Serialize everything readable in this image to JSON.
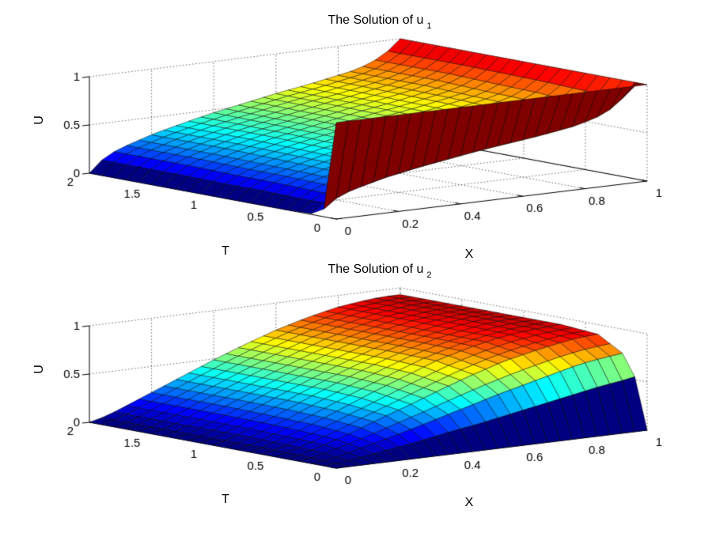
{
  "figure": {
    "background": "#FFFFFF",
    "text_color": "#000000",
    "grid_color": "#666666",
    "axis_color": "#000000"
  },
  "chart_data": [
    {
      "type": "surface",
      "title_text": "The Solution of u",
      "title_subscript": "1",
      "xlabel": "X",
      "ylabel": "T",
      "zlabel": "U",
      "colormap": "jet",
      "grid_on": true,
      "x_range": [
        0,
        1
      ],
      "t_range": [
        0,
        2
      ],
      "u_range": [
        0,
        1
      ],
      "x_ticks": [
        0,
        0.2,
        0.4,
        0.6,
        0.8,
        1
      ],
      "x_tick_labels": [
        "0",
        "0.2",
        "0.4",
        "0.6",
        "0.8",
        "1"
      ],
      "t_ticks": [
        0,
        0.5,
        1,
        1.5,
        2
      ],
      "t_tick_labels": [
        "0",
        "0.5",
        "1",
        "1.5",
        "2"
      ],
      "u_ticks": [
        0,
        0.5,
        1
      ],
      "u_tick_labels": [
        "0",
        "0.5",
        "1"
      ],
      "x": [
        0,
        0.05,
        0.1,
        0.2,
        0.3,
        0.4,
        0.5,
        0.6,
        0.7,
        0.8,
        0.85,
        0.9,
        0.95,
        1
      ],
      "t": [
        0,
        0.1,
        0.2,
        0.4,
        0.7,
        1,
        1.4,
        2
      ],
      "u": [
        [
          1.0,
          1.0,
          1.0,
          1.0,
          1.0,
          1.0,
          1.0,
          1.0,
          1.0,
          1.0,
          1.0,
          1.0,
          1.0,
          1.0
        ],
        [
          0.08,
          0.2,
          0.25,
          0.33,
          0.39,
          0.44,
          0.49,
          0.53,
          0.57,
          0.62,
          0.66,
          0.71,
          0.81,
          1.0
        ],
        [
          0.01,
          0.13,
          0.19,
          0.28,
          0.35,
          0.41,
          0.46,
          0.51,
          0.56,
          0.61,
          0.65,
          0.7,
          0.8,
          1.0
        ],
        [
          0.0,
          0.13,
          0.2,
          0.29,
          0.36,
          0.42,
          0.48,
          0.53,
          0.58,
          0.63,
          0.67,
          0.72,
          0.82,
          1.0
        ],
        [
          0.0,
          0.14,
          0.21,
          0.3,
          0.38,
          0.44,
          0.5,
          0.55,
          0.6,
          0.66,
          0.7,
          0.75,
          0.84,
          1.0
        ],
        [
          0.0,
          0.14,
          0.21,
          0.31,
          0.39,
          0.45,
          0.51,
          0.57,
          0.62,
          0.68,
          0.71,
          0.76,
          0.85,
          1.0
        ],
        [
          0.0,
          0.15,
          0.22,
          0.32,
          0.4,
          0.46,
          0.52,
          0.58,
          0.63,
          0.69,
          0.73,
          0.78,
          0.86,
          1.0
        ],
        [
          0.0,
          0.15,
          0.22,
          0.32,
          0.4,
          0.47,
          0.53,
          0.59,
          0.64,
          0.7,
          0.73,
          0.78,
          0.86,
          1.0
        ]
      ]
    },
    {
      "type": "surface",
      "title_text": "The Solution of u",
      "title_subscript": "2",
      "xlabel": "X",
      "ylabel": "T",
      "zlabel": "U",
      "colormap": "jet",
      "grid_on": true,
      "x_range": [
        0,
        1
      ],
      "t_range": [
        0,
        2
      ],
      "u_range": [
        0,
        1
      ],
      "x_ticks": [
        0,
        0.2,
        0.4,
        0.6,
        0.8,
        1
      ],
      "x_tick_labels": [
        "0",
        "0.2",
        "0.4",
        "0.6",
        "0.8",
        "1"
      ],
      "t_ticks": [
        0,
        0.5,
        1,
        1.5,
        2
      ],
      "t_tick_labels": [
        "0",
        "0.5",
        "1",
        "1.5",
        "2"
      ],
      "u_ticks": [
        0,
        0.5,
        1
      ],
      "u_tick_labels": [
        "0",
        "0.5",
        "1"
      ],
      "x": [
        0,
        0.05,
        0.1,
        0.2,
        0.3,
        0.4,
        0.5,
        0.6,
        0.7,
        0.8,
        0.85,
        0.9,
        0.95,
        1
      ],
      "t": [
        0,
        0.1,
        0.2,
        0.4,
        0.7,
        1,
        1.4,
        2
      ],
      "u": [
        [
          0.0,
          0.0,
          0.0,
          0.0,
          0.0,
          0.0,
          0.0,
          0.0,
          0.0,
          0.0,
          0.0,
          0.0,
          0.0,
          0.0
        ],
        [
          0.0,
          0.01,
          0.03,
          0.08,
          0.13,
          0.19,
          0.24,
          0.3,
          0.36,
          0.42,
          0.45,
          0.48,
          0.5,
          0.53
        ],
        [
          0.0,
          0.02,
          0.05,
          0.13,
          0.21,
          0.3,
          0.39,
          0.48,
          0.56,
          0.64,
          0.68,
          0.71,
          0.73,
          0.75
        ],
        [
          0.0,
          0.03,
          0.08,
          0.18,
          0.3,
          0.41,
          0.53,
          0.64,
          0.74,
          0.81,
          0.84,
          0.87,
          0.89,
          0.9
        ],
        [
          0.0,
          0.04,
          0.09,
          0.21,
          0.34,
          0.47,
          0.59,
          0.71,
          0.8,
          0.87,
          0.89,
          0.91,
          0.92,
          0.93
        ],
        [
          0.0,
          0.04,
          0.1,
          0.22,
          0.36,
          0.49,
          0.61,
          0.72,
          0.81,
          0.87,
          0.9,
          0.92,
          0.93,
          0.93
        ],
        [
          0.0,
          0.04,
          0.1,
          0.23,
          0.36,
          0.49,
          0.61,
          0.72,
          0.81,
          0.88,
          0.9,
          0.92,
          0.93,
          0.93
        ],
        [
          0.0,
          0.04,
          0.1,
          0.23,
          0.36,
          0.49,
          0.61,
          0.72,
          0.81,
          0.88,
          0.9,
          0.92,
          0.93,
          0.93
        ]
      ]
    }
  ]
}
